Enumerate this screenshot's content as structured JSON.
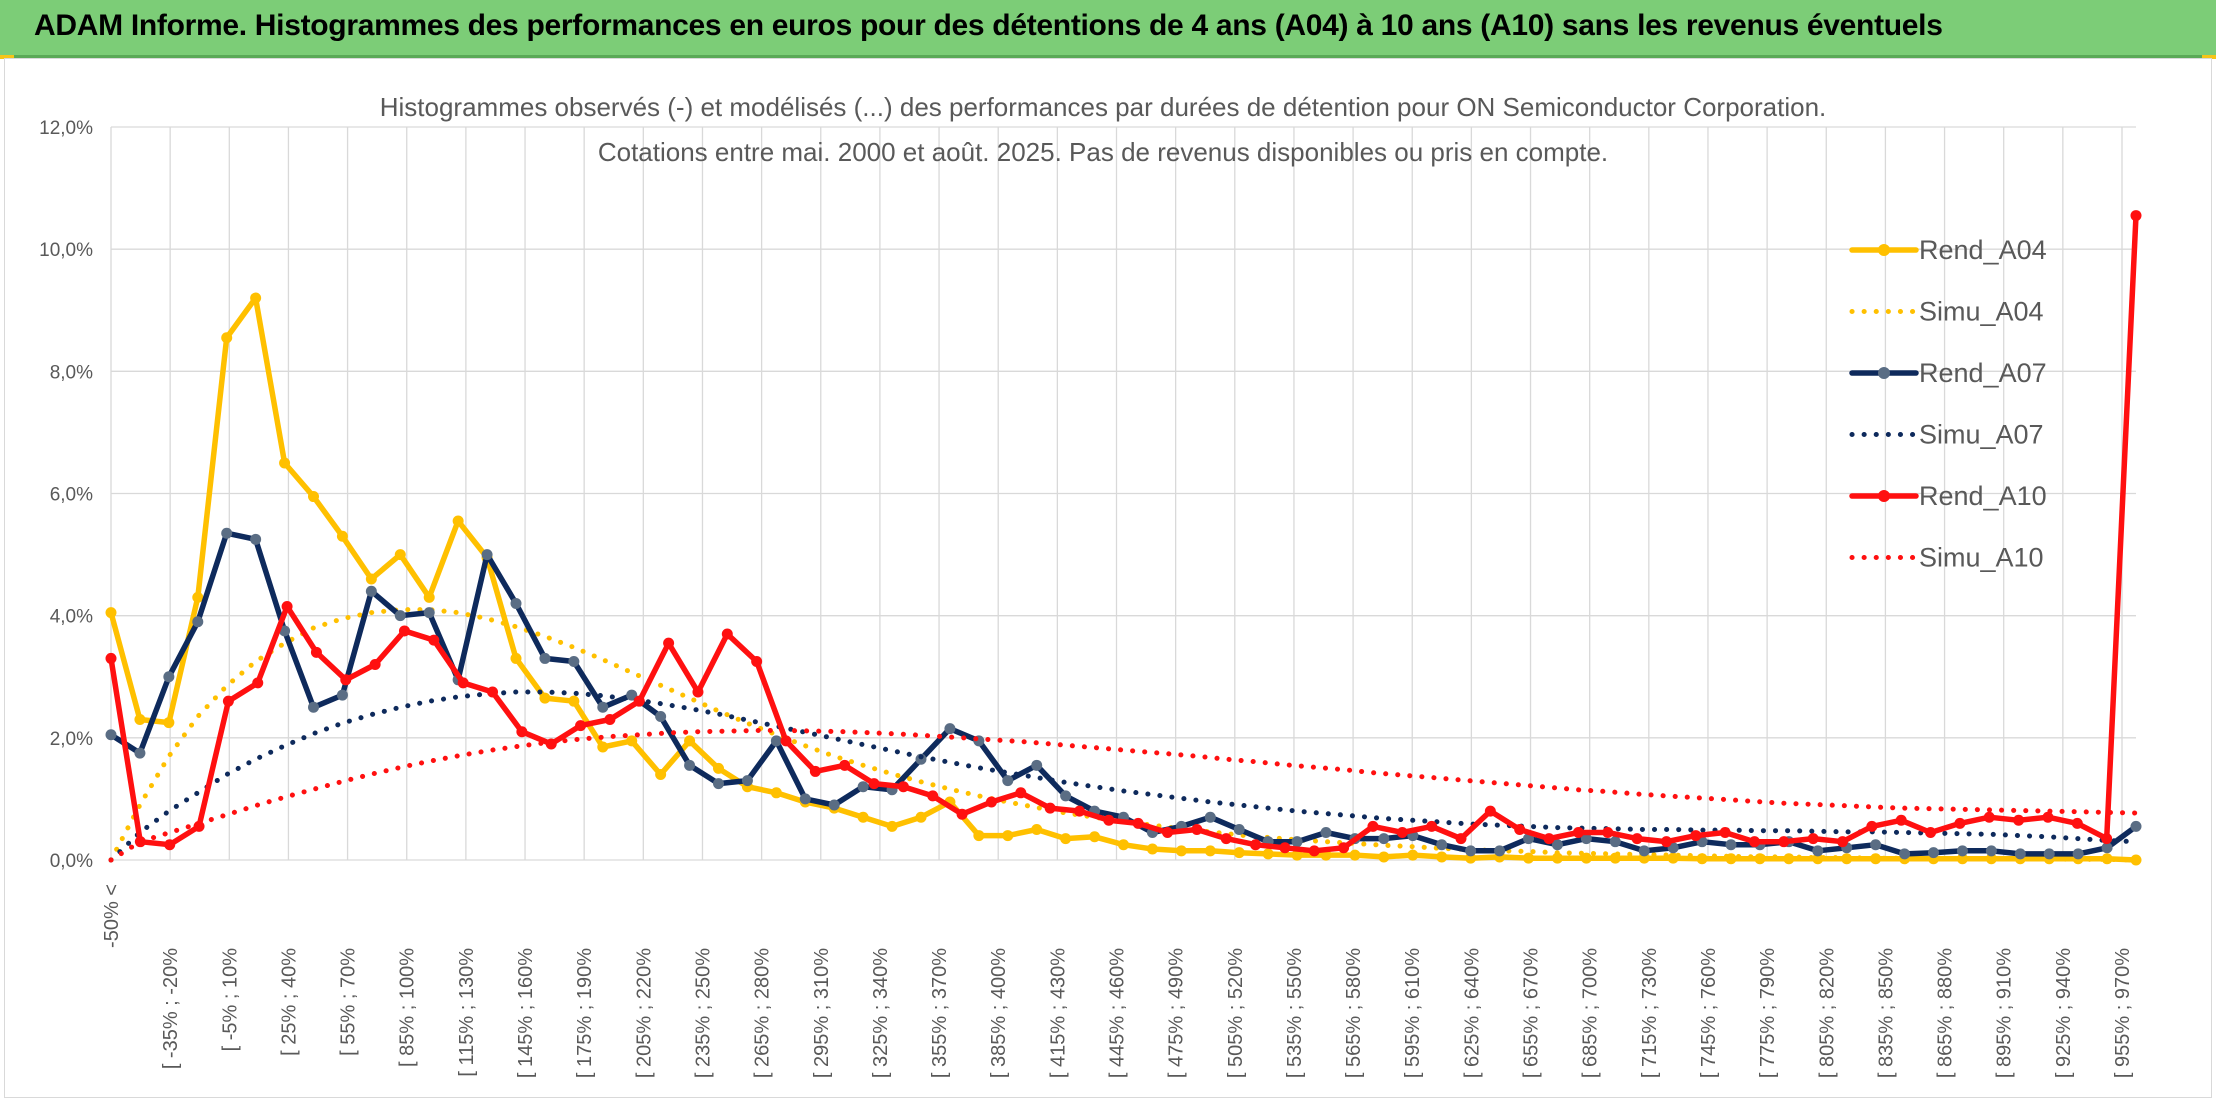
{
  "banner": {
    "title": "ADAM Informe. Histogrammes des performances en euros pour des détentions de 4 ans (A04) à 10 ans (A10) sans les revenus éventuels"
  },
  "colors": {
    "banner_bg": "#7ccd77",
    "accent_yellow": "#f5c518",
    "A04": "#ffc000",
    "A07": "#0e2a5c",
    "A10": "#ff1010",
    "grid": "#d9d9d9"
  },
  "chart_data": {
    "type": "line",
    "title_lines": [
      "Histogrammes observés (-) et modélisés (...) des performances par durées de détention pour ON Semiconductor Corporation.",
      "Cotations entre mai. 2000 et août. 2025. Pas de revenus disponibles ou pris en compte."
    ],
    "xlabel": "",
    "ylabel": "",
    "ylim": [
      0,
      12
    ],
    "yticks": [
      "0,0%",
      "2,0%",
      "4,0%",
      "6,0%",
      "8,0%",
      "10,0%",
      "12,0%"
    ],
    "grid": true,
    "legend_position": "right",
    "category_labels": [
      "-50% <",
      "[ -35% ; -20%",
      "[ -5% ; 10%",
      "[ 25% ; 40%",
      "[ 55% ; 70%",
      "[ 85% ; 100%",
      "[ 115% ; 130%",
      "[ 145% ; 160%",
      "[ 175% ; 190%",
      "[ 205% ; 220%",
      "[ 235% ; 250%",
      "[ 265% ; 280%",
      "[ 295% ; 310%",
      "[ 325% ; 340%",
      "[ 355% ; 370%",
      "[ 385% ; 400%",
      "[ 415% ; 430%",
      "[ 445% ; 460%",
      "[ 475% ; 490%",
      "[ 505% ; 520%",
      "[ 535% ; 550%",
      "[ 565% ; 580%",
      "[ 595% ; 610%",
      "[ 625% ; 640%",
      "[ 655% ; 670%",
      "[ 685% ; 700%",
      "[ 715% ; 730%",
      "[ 745% ; 760%",
      "[ 775% ; 790%",
      "[ 805% ; 820%",
      "[ 835% ; 850%",
      "[ 865% ; 880%",
      "[ 895% ; 910%",
      "[ 925% ; 940%",
      "[ 955% ; 970%"
    ],
    "series": [
      {
        "name": "Rend_A04",
        "style": "solid",
        "color": "#ffc000",
        "values": [
          4.05,
          2.3,
          2.25,
          4.3,
          8.55,
          9.2,
          6.5,
          5.95,
          5.3,
          4.6,
          5.0,
          4.3,
          5.55,
          4.95,
          3.3,
          2.65,
          2.6,
          1.85,
          1.95,
          1.4,
          1.95,
          1.5,
          1.2,
          1.1,
          0.95,
          0.85,
          0.7,
          0.55,
          0.7,
          0.95,
          0.4,
          0.4,
          0.5,
          0.35,
          0.38,
          0.25,
          0.18,
          0.15,
          0.15,
          0.12,
          0.1,
          0.08,
          0.08,
          0.08,
          0.05,
          0.08,
          0.05,
          0.03,
          0.05,
          0.03,
          0.03,
          0.03,
          0.03,
          0.03,
          0.03,
          0.02,
          0.02,
          0.02,
          0.02,
          0.02,
          0.02,
          0.02,
          0.02,
          0.02,
          0.02,
          0.02,
          0.02,
          0.02,
          0.02,
          0.02,
          0.0
        ]
      },
      {
        "name": "Simu_A04",
        "style": "dotted",
        "color": "#ffc000",
        "values": [
          0.0,
          0.9,
          1.7,
          2.35,
          2.85,
          3.25,
          3.55,
          3.8,
          3.95,
          4.05,
          4.1,
          4.1,
          4.05,
          3.95,
          3.82,
          3.66,
          3.48,
          3.28,
          3.07,
          2.86,
          2.65,
          2.44,
          2.24,
          2.05,
          1.87,
          1.7,
          1.55,
          1.41,
          1.28,
          1.16,
          1.05,
          0.95,
          0.86,
          0.77,
          0.7,
          0.63,
          0.57,
          0.51,
          0.46,
          0.41,
          0.37,
          0.33,
          0.3,
          0.27,
          0.24,
          0.22,
          0.19,
          0.17,
          0.15,
          0.14,
          0.12,
          0.11,
          0.1,
          0.09,
          0.08,
          0.07,
          0.06,
          0.05,
          0.05,
          0.04,
          0.04,
          0.03,
          0.03,
          0.03,
          0.02,
          0.02,
          0.02,
          0.02,
          0.01,
          0.01,
          0.0
        ]
      },
      {
        "name": "Rend_A07",
        "style": "solid",
        "color": "#0e2a5c",
        "values": [
          2.05,
          1.75,
          3.0,
          3.9,
          5.35,
          5.25,
          3.75,
          2.5,
          2.7,
          4.4,
          4.0,
          4.05,
          2.95,
          5.0,
          4.2,
          3.3,
          3.25,
          2.5,
          2.7,
          2.35,
          1.55,
          1.25,
          1.3,
          1.95,
          1.0,
          0.9,
          1.2,
          1.15,
          1.65,
          2.15,
          1.95,
          1.3,
          1.55,
          1.05,
          0.8,
          0.7,
          0.45,
          0.55,
          0.7,
          0.5,
          0.3,
          0.3,
          0.45,
          0.35,
          0.35,
          0.4,
          0.25,
          0.15,
          0.15,
          0.35,
          0.25,
          0.35,
          0.3,
          0.15,
          0.2,
          0.3,
          0.25,
          0.25,
          0.3,
          0.15,
          0.2,
          0.25,
          0.1,
          0.12,
          0.15,
          0.15,
          0.1,
          0.1,
          0.1,
          0.2,
          0.55
        ]
      },
      {
        "name": "Simu_A07",
        "style": "dotted",
        "color": "#0e2a5c",
        "values": [
          0.0,
          0.45,
          0.8,
          1.1,
          1.4,
          1.65,
          1.87,
          2.07,
          2.24,
          2.38,
          2.5,
          2.6,
          2.67,
          2.72,
          2.75,
          2.75,
          2.73,
          2.69,
          2.63,
          2.56,
          2.48,
          2.39,
          2.29,
          2.19,
          2.09,
          1.99,
          1.89,
          1.79,
          1.69,
          1.6,
          1.51,
          1.43,
          1.35,
          1.27,
          1.2,
          1.13,
          1.07,
          1.01,
          0.95,
          0.9,
          0.85,
          0.8,
          0.76,
          0.72,
          0.68,
          0.65,
          0.62,
          0.59,
          0.57,
          0.55,
          0.53,
          0.52,
          0.51,
          0.5,
          0.5,
          0.49,
          0.49,
          0.48,
          0.48,
          0.47,
          0.46,
          0.46,
          0.45,
          0.44,
          0.43,
          0.42,
          0.4,
          0.38,
          0.35,
          0.32,
          0.3
        ]
      },
      {
        "name": "Rend_A10",
        "style": "solid",
        "color": "#ff1010",
        "values": [
          3.3,
          0.3,
          0.25,
          0.55,
          2.6,
          2.9,
          4.15,
          3.4,
          2.95,
          3.2,
          3.75,
          3.6,
          2.9,
          2.75,
          2.1,
          1.9,
          2.2,
          2.3,
          2.6,
          3.55,
          2.75,
          3.7,
          3.25,
          1.95,
          1.45,
          1.55,
          1.25,
          1.2,
          1.05,
          0.75,
          0.95,
          1.1,
          0.85,
          0.8,
          0.65,
          0.6,
          0.45,
          0.5,
          0.35,
          0.25,
          0.2,
          0.15,
          0.2,
          0.55,
          0.45,
          0.55,
          0.35,
          0.8,
          0.5,
          0.35,
          0.45,
          0.45,
          0.35,
          0.3,
          0.4,
          0.45,
          0.3,
          0.3,
          0.35,
          0.3,
          0.55,
          0.65,
          0.45,
          0.6,
          0.7,
          0.65,
          0.7,
          0.6,
          0.35,
          10.55
        ]
      },
      {
        "name": "Simu_A10",
        "style": "dotted",
        "color": "#ff1010",
        "values": [
          0.0,
          0.3,
          0.45,
          0.6,
          0.75,
          0.9,
          1.04,
          1.17,
          1.3,
          1.42,
          1.53,
          1.63,
          1.72,
          1.8,
          1.87,
          1.93,
          1.98,
          2.02,
          2.05,
          2.08,
          2.1,
          2.11,
          2.12,
          2.12,
          2.11,
          2.1,
          2.08,
          2.06,
          2.03,
          2.0,
          1.97,
          1.94,
          1.9,
          1.86,
          1.82,
          1.78,
          1.74,
          1.7,
          1.65,
          1.61,
          1.56,
          1.52,
          1.48,
          1.43,
          1.39,
          1.35,
          1.31,
          1.27,
          1.23,
          1.19,
          1.15,
          1.12,
          1.08,
          1.05,
          1.02,
          0.99,
          0.96,
          0.93,
          0.91,
          0.89,
          0.87,
          0.85,
          0.84,
          0.83,
          0.82,
          0.81,
          0.8,
          0.79,
          0.78,
          0.77
        ]
      }
    ]
  }
}
